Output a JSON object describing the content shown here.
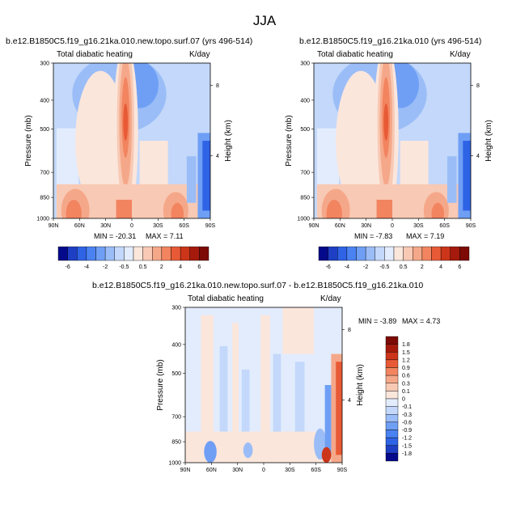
{
  "figure": {
    "title": "JJA"
  },
  "colors": {
    "levels": [
      "#050a8a",
      "#1e3fc4",
      "#2f63e6",
      "#4a82f2",
      "#6f9ff5",
      "#9bbdf7",
      "#c3d8fa",
      "#e2ecfd",
      "#fbe6dc",
      "#f8c9b4",
      "#f5a889",
      "#f28460",
      "#e85a36",
      "#cc3519",
      "#a51a0c",
      "#7d0a05"
    ]
  },
  "chart_data": [
    {
      "type": "heatmap",
      "title": "b.e12.B1850C5.f19_g16.21ka.010.new.topo.surf.07 (yrs 496-514)",
      "left_label": "Total diabatic heating",
      "right_label": "K/day",
      "xlabel": "",
      "ylabel": "Pressure (mb)",
      "y2label": "Height (km)",
      "x_ticks": [
        "90N",
        "60N",
        "30N",
        "0",
        "30S",
        "60S",
        "90S"
      ],
      "y_ticks": [
        "300",
        "400",
        "500",
        "700",
        "850",
        "1000"
      ],
      "y2_ticks": [
        "8",
        "4"
      ],
      "min_label": "MIN = -20.31",
      "max_label": "MAX =   7.11",
      "stats": {
        "min": -20.31,
        "max": 7.11
      }
    },
    {
      "type": "heatmap",
      "title": "b.e12.B1850C5.f19_g16.21ka.010 (yrs 496-514)",
      "left_label": "Total diabatic heating",
      "right_label": "K/day",
      "xlabel": "",
      "ylabel": "Pressure (mb)",
      "y2label": "Height (km)",
      "x_ticks": [
        "90N",
        "60N",
        "30N",
        "0",
        "30S",
        "60S",
        "90S"
      ],
      "y_ticks": [
        "300",
        "400",
        "500",
        "700",
        "850",
        "1000"
      ],
      "y2_ticks": [
        "8",
        "4"
      ],
      "min_label": "MIN =  -7.83",
      "max_label": "MAX =   7.19",
      "stats": {
        "min": -7.83,
        "max": 7.19
      }
    },
    {
      "type": "heatmap",
      "title": "b.e12.B1850C5.f19_g16.21ka.010.new.topo.surf.07 - b.e12.B1850C5.f19_g16.21ka.010",
      "left_label": "Total diabatic heating",
      "right_label": "K/day",
      "xlabel": "",
      "ylabel": "Pressure (mb)",
      "y2label": "Height (km)",
      "x_ticks": [
        "90N",
        "60N",
        "30N",
        "0",
        "30S",
        "60S",
        "90S"
      ],
      "y_ticks": [
        "300",
        "400",
        "500",
        "700",
        "850",
        "1000"
      ],
      "y2_ticks": [
        "8",
        "4"
      ],
      "min_label": "MIN =  -3.89",
      "max_label": "MAX =   4.73",
      "stats": {
        "min": -3.89,
        "max": 4.73
      }
    }
  ],
  "colorbar_main": {
    "labels": [
      "-6",
      "-4",
      "-2",
      "-0.5",
      "0.5",
      "2",
      "4",
      "6"
    ]
  },
  "colorbar_diff": {
    "labels": [
      "1.8",
      "1.5",
      "1.2",
      "0.9",
      "0.6",
      "0.3",
      "0.1",
      "0",
      "-0.1",
      "-0.3",
      "-0.6",
      "-0.9",
      "-1.2",
      "-1.5",
      "-1.8"
    ]
  }
}
